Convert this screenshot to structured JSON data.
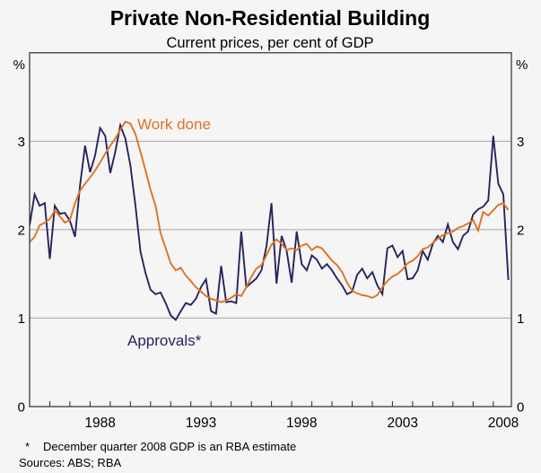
{
  "header": {
    "title": "Private Non-Residential Building",
    "subtitle": "Current prices, per cent of GDP"
  },
  "axis": {
    "unit_left": "%",
    "unit_right": "%"
  },
  "footnote": {
    "marker": "*",
    "note": "December quarter 2008 GDP is an RBA estimate",
    "sources": "Sources: ABS; RBA"
  },
  "colors": {
    "work_done": "#DF7320",
    "approvals": "#29235C",
    "gridline": "#a6a6a6",
    "frame": "#2b2b2b",
    "tick": "#2b2b2b",
    "text": "#000000",
    "background": "#f5f5f6"
  },
  "chart_data": {
    "type": "line",
    "title": "Private Non-Residential Building",
    "subtitle": "Current prices, per cent of GDP",
    "x_unit": "year (quarterly observations)",
    "y_unit": "per cent of GDP",
    "x_start": 1985.0,
    "x_step": 0.25,
    "xlim": [
      1985.0,
      2008.9
    ],
    "ylim": [
      0,
      4
    ],
    "grid": "horizontal-only",
    "legend_position": "inline-annotations",
    "y_gridlines": [
      1,
      2,
      3
    ],
    "y_tick_labels": [
      {
        "value": 0,
        "label": "0"
      },
      {
        "value": 1,
        "label": "1"
      },
      {
        "value": 2,
        "label": "2"
      },
      {
        "value": 3,
        "label": "3"
      }
    ],
    "x_tick_labels": [
      {
        "year": 1988,
        "label": "1988"
      },
      {
        "year": 1993,
        "label": "1993"
      },
      {
        "year": 1998,
        "label": "1998"
      },
      {
        "year": 2003,
        "label": "2003"
      },
      {
        "year": 2008,
        "label": "2008"
      }
    ],
    "series": [
      {
        "name": "Work done",
        "color_key": "work_done",
        "values": [
          1.86,
          1.92,
          2.05,
          2.08,
          2.12,
          2.22,
          2.15,
          2.08,
          2.11,
          2.3,
          2.44,
          2.52,
          2.59,
          2.67,
          2.76,
          2.86,
          2.95,
          3.03,
          3.13,
          3.22,
          3.2,
          3.08,
          2.88,
          2.67,
          2.45,
          2.27,
          1.96,
          1.79,
          1.62,
          1.54,
          1.57,
          1.48,
          1.42,
          1.35,
          1.3,
          1.25,
          1.22,
          1.2,
          1.18,
          1.2,
          1.23,
          1.27,
          1.25,
          1.35,
          1.47,
          1.56,
          1.6,
          1.71,
          1.83,
          1.89,
          1.84,
          1.77,
          1.79,
          1.77,
          1.82,
          1.84,
          1.77,
          1.81,
          1.79,
          1.72,
          1.65,
          1.6,
          1.52,
          1.4,
          1.31,
          1.28,
          1.26,
          1.25,
          1.23,
          1.26,
          1.35,
          1.42,
          1.47,
          1.5,
          1.55,
          1.62,
          1.65,
          1.7,
          1.78,
          1.8,
          1.85,
          1.9,
          1.94,
          1.96,
          1.98,
          2.02,
          2.04,
          2.07,
          2.11,
          1.99,
          2.2,
          2.16,
          2.22,
          2.28,
          2.3,
          2.22
        ]
      },
      {
        "name": "Approvals*",
        "color_key": "approvals",
        "values": [
          2.05,
          2.4,
          2.27,
          2.3,
          1.67,
          2.27,
          2.18,
          2.19,
          2.1,
          1.92,
          2.5,
          2.95,
          2.65,
          2.84,
          3.15,
          3.06,
          2.64,
          2.88,
          3.18,
          3.03,
          2.73,
          2.27,
          1.75,
          1.51,
          1.32,
          1.27,
          1.29,
          1.17,
          1.03,
          0.98,
          1.08,
          1.17,
          1.15,
          1.22,
          1.35,
          1.44,
          1.08,
          1.05,
          1.59,
          1.18,
          1.19,
          1.17,
          1.98,
          1.35,
          1.4,
          1.45,
          1.54,
          1.81,
          2.3,
          1.39,
          1.93,
          1.76,
          1.4,
          1.98,
          1.61,
          1.54,
          1.71,
          1.66,
          1.56,
          1.61,
          1.54,
          1.45,
          1.37,
          1.27,
          1.3,
          1.49,
          1.56,
          1.45,
          1.52,
          1.37,
          1.27,
          1.79,
          1.82,
          1.69,
          1.76,
          1.44,
          1.45,
          1.54,
          1.76,
          1.66,
          1.84,
          1.93,
          1.86,
          2.06,
          1.86,
          1.78,
          1.93,
          1.98,
          2.17,
          2.23,
          2.26,
          2.33,
          3.06,
          2.52,
          2.4,
          1.43
        ]
      }
    ]
  }
}
